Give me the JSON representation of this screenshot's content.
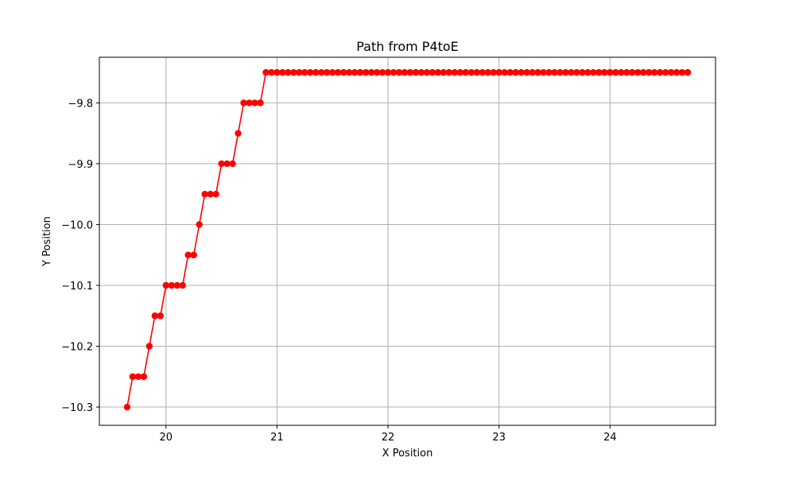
{
  "chart_data": {
    "type": "line",
    "title": "Path from P4toE",
    "xlabel": "X Position",
    "ylabel": "Y Position",
    "xlim": [
      19.4,
      24.95
    ],
    "ylim": [
      -10.33,
      -9.725
    ],
    "xticks": [
      20,
      21,
      22,
      23,
      24
    ],
    "xtick_labels": [
      "20",
      "21",
      "22",
      "23",
      "24"
    ],
    "yticks": [
      -10.3,
      -10.2,
      -10.1,
      -10.0,
      -9.9,
      -9.8
    ],
    "ytick_labels": [
      "−10.3",
      "−10.2",
      "−10.1",
      "−10.0",
      "−9.9",
      "−9.8"
    ],
    "grid": true,
    "series": [
      {
        "color": "#ff0000",
        "marker": "circle",
        "points": [
          [
            19.65,
            -10.3
          ],
          [
            19.7,
            -10.25
          ],
          [
            19.75,
            -10.25
          ],
          [
            19.8,
            -10.25
          ],
          [
            19.85,
            -10.2
          ],
          [
            19.9,
            -10.15
          ],
          [
            19.95,
            -10.15
          ],
          [
            20.0,
            -10.1
          ],
          [
            20.05,
            -10.1
          ],
          [
            20.1,
            -10.1
          ],
          [
            20.15,
            -10.1
          ],
          [
            20.2,
            -10.05
          ],
          [
            20.25,
            -10.05
          ],
          [
            20.3,
            -10.0
          ],
          [
            20.35,
            -9.95
          ],
          [
            20.4,
            -9.95
          ],
          [
            20.45,
            -9.95
          ],
          [
            20.5,
            -9.9
          ],
          [
            20.55,
            -9.9
          ],
          [
            20.6,
            -9.9
          ],
          [
            20.65,
            -9.85
          ],
          [
            20.7,
            -9.8
          ],
          [
            20.75,
            -9.8
          ],
          [
            20.8,
            -9.8
          ],
          [
            20.85,
            -9.8
          ],
          [
            20.9,
            -9.75
          ],
          [
            20.95,
            -9.75
          ],
          [
            21.0,
            -9.75
          ],
          [
            21.05,
            -9.75
          ],
          [
            21.1,
            -9.75
          ],
          [
            21.15,
            -9.75
          ],
          [
            21.2,
            -9.75
          ],
          [
            21.25,
            -9.75
          ],
          [
            21.3,
            -9.75
          ],
          [
            21.35,
            -9.75
          ],
          [
            21.4,
            -9.75
          ],
          [
            21.45,
            -9.75
          ],
          [
            21.5,
            -9.75
          ],
          [
            21.55,
            -9.75
          ],
          [
            21.6,
            -9.75
          ],
          [
            21.65,
            -9.75
          ],
          [
            21.7,
            -9.75
          ],
          [
            21.75,
            -9.75
          ],
          [
            21.8,
            -9.75
          ],
          [
            21.85,
            -9.75
          ],
          [
            21.9,
            -9.75
          ],
          [
            21.95,
            -9.75
          ],
          [
            22.0,
            -9.75
          ],
          [
            22.05,
            -9.75
          ],
          [
            22.1,
            -9.75
          ],
          [
            22.15,
            -9.75
          ],
          [
            22.2,
            -9.75
          ],
          [
            22.25,
            -9.75
          ],
          [
            22.3,
            -9.75
          ],
          [
            22.35,
            -9.75
          ],
          [
            22.4,
            -9.75
          ],
          [
            22.45,
            -9.75
          ],
          [
            22.5,
            -9.75
          ],
          [
            22.55,
            -9.75
          ],
          [
            22.6,
            -9.75
          ],
          [
            22.65,
            -9.75
          ],
          [
            22.7,
            -9.75
          ],
          [
            22.75,
            -9.75
          ],
          [
            22.8,
            -9.75
          ],
          [
            22.85,
            -9.75
          ],
          [
            22.9,
            -9.75
          ],
          [
            22.95,
            -9.75
          ],
          [
            23.0,
            -9.75
          ],
          [
            23.05,
            -9.75
          ],
          [
            23.1,
            -9.75
          ],
          [
            23.15,
            -9.75
          ],
          [
            23.2,
            -9.75
          ],
          [
            23.25,
            -9.75
          ],
          [
            23.3,
            -9.75
          ],
          [
            23.35,
            -9.75
          ],
          [
            23.4,
            -9.75
          ],
          [
            23.45,
            -9.75
          ],
          [
            23.5,
            -9.75
          ],
          [
            23.55,
            -9.75
          ],
          [
            23.6,
            -9.75
          ],
          [
            23.65,
            -9.75
          ],
          [
            23.7,
            -9.75
          ],
          [
            23.75,
            -9.75
          ],
          [
            23.8,
            -9.75
          ],
          [
            23.85,
            -9.75
          ],
          [
            23.9,
            -9.75
          ],
          [
            23.95,
            -9.75
          ],
          [
            24.0,
            -9.75
          ],
          [
            24.05,
            -9.75
          ],
          [
            24.1,
            -9.75
          ],
          [
            24.15,
            -9.75
          ],
          [
            24.2,
            -9.75
          ],
          [
            24.25,
            -9.75
          ],
          [
            24.3,
            -9.75
          ],
          [
            24.35,
            -9.75
          ],
          [
            24.4,
            -9.75
          ],
          [
            24.45,
            -9.75
          ],
          [
            24.5,
            -9.75
          ],
          [
            24.55,
            -9.75
          ],
          [
            24.6,
            -9.75
          ],
          [
            24.65,
            -9.75
          ],
          [
            24.7,
            -9.75
          ]
        ]
      }
    ]
  }
}
